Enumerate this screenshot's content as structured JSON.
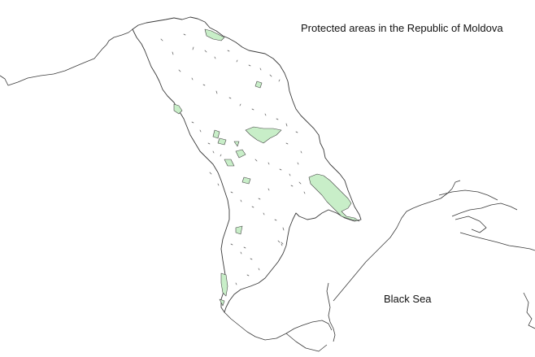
{
  "map": {
    "title": "Protected areas in the Republic of Moldova",
    "sea_label": "Black Sea",
    "colors": {
      "protected_area_fill": "#c8eec8",
      "boundary_stroke": "#3a3a3a",
      "background": "#ffffff"
    }
  }
}
